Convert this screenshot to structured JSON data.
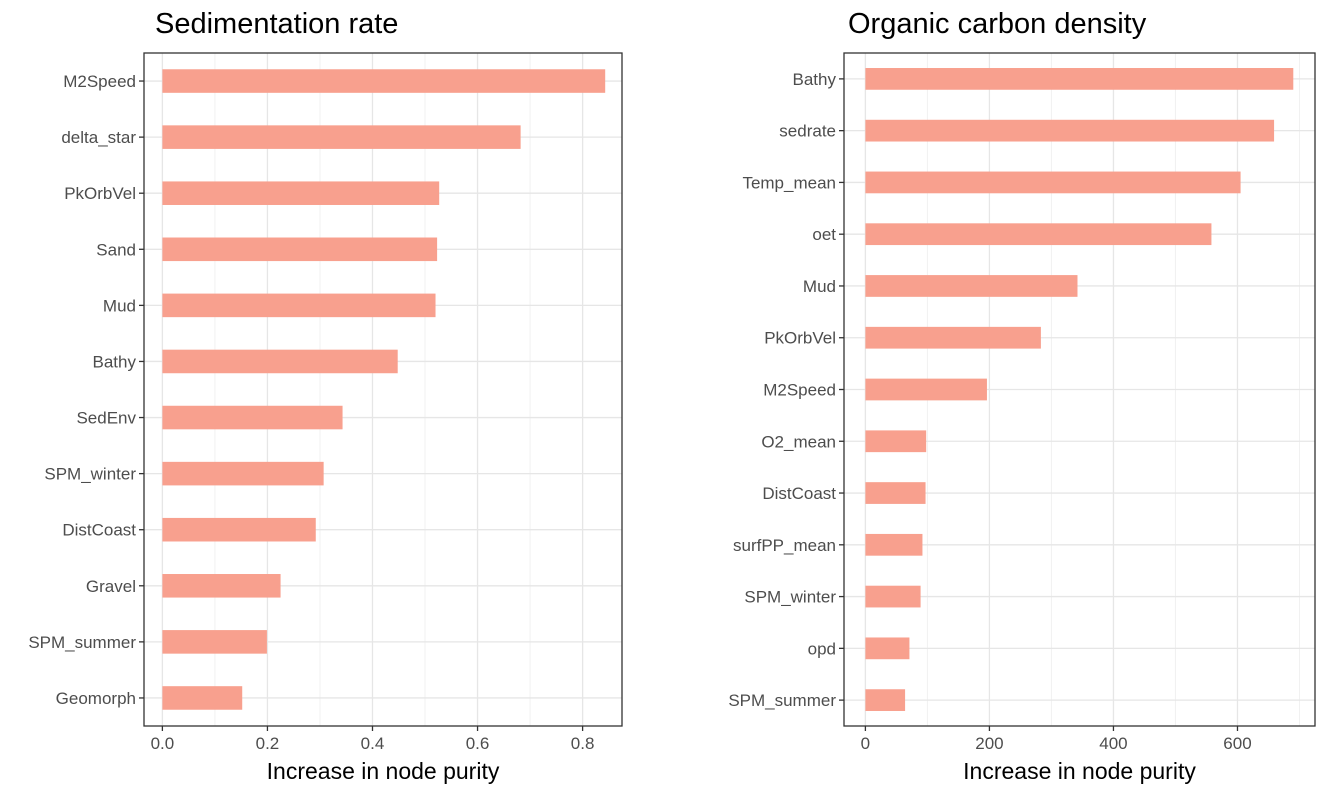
{
  "chart_data": [
    {
      "type": "bar",
      "orientation": "horizontal",
      "title": "Sedimentation rate",
      "xlabel": "Increase in node purity",
      "ylabel": "",
      "xlim": [
        -0.035,
        0.875
      ],
      "xticks": [
        0.0,
        0.2,
        0.4,
        0.6,
        0.8
      ],
      "xtick_labels": [
        "0.0",
        "0.2",
        "0.4",
        "0.6",
        "0.8"
      ],
      "grid": true,
      "bar_color": "#F8A08E",
      "categories": [
        "M2Speed",
        "delta_star",
        "PkOrbVel",
        "Sand",
        "Mud",
        "Bathy",
        "SedEnv",
        "SPM_winter",
        "DistCoast",
        "Gravel",
        "SPM_summer",
        "Geomorph"
      ],
      "values": [
        0.843,
        0.682,
        0.527,
        0.523,
        0.52,
        0.448,
        0.343,
        0.307,
        0.292,
        0.225,
        0.199,
        0.152
      ]
    },
    {
      "type": "bar",
      "orientation": "horizontal",
      "title": "Organic carbon density",
      "xlabel": "Increase in node purity",
      "ylabel": "",
      "xlim": [
        -34.5,
        725
      ],
      "xticks": [
        0,
        200,
        400,
        600
      ],
      "xtick_labels": [
        "0",
        "200",
        "400",
        "600"
      ],
      "grid": true,
      "bar_color": "#F8A08E",
      "categories": [
        "Bathy",
        "sedrate",
        "Temp_mean",
        "oet",
        "Mud",
        "PkOrbVel",
        "M2Speed",
        "O2_mean",
        "DistCoast",
        "surfPP_mean",
        "SPM_winter",
        "opd",
        "SPM_summer"
      ],
      "values": [
        690,
        659,
        605,
        558,
        342,
        283,
        196,
        98,
        97,
        92,
        89,
        71,
        64
      ]
    }
  ]
}
